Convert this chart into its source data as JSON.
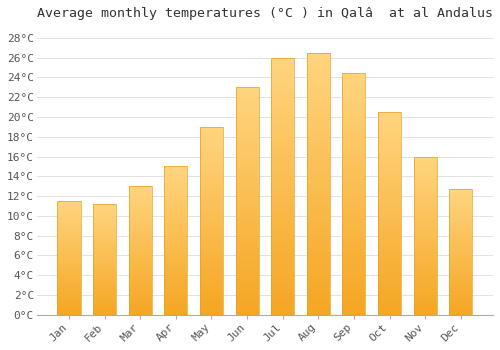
{
  "title": "Average monthly temperatures (°C ) in Qalâ  at al Andalus",
  "months": [
    "Jan",
    "Feb",
    "Mar",
    "Apr",
    "May",
    "Jun",
    "Jul",
    "Aug",
    "Sep",
    "Oct",
    "Nov",
    "Dec"
  ],
  "values": [
    11.5,
    11.2,
    13.0,
    15.0,
    19.0,
    23.0,
    26.0,
    26.5,
    24.5,
    20.5,
    16.0,
    12.7
  ],
  "bar_color_bottom": "#F5A623",
  "bar_color_top": "#FFD580",
  "bar_edge_color": "#E8A020",
  "background_color": "#ffffff",
  "plot_bg_color": "#ffffff",
  "grid_color": "#dddddd",
  "ylim": [
    0,
    29
  ],
  "yticks": [
    0,
    2,
    4,
    6,
    8,
    10,
    12,
    14,
    16,
    18,
    20,
    22,
    24,
    26,
    28
  ],
  "title_fontsize": 9.5,
  "tick_fontsize": 8,
  "font_family": "monospace",
  "bar_width": 0.65
}
